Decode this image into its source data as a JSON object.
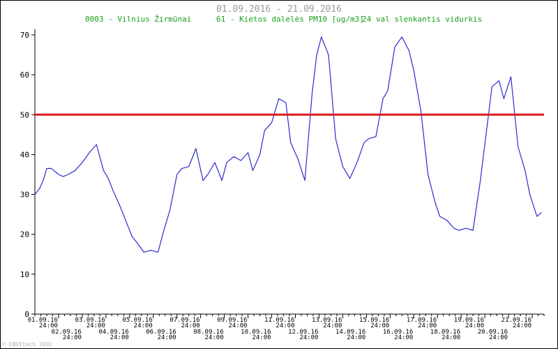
{
  "header": {
    "date_range": "01.09.2016 - 21.09.2016",
    "station": "0003 - Vilnius Žirmūnai",
    "pollutant": "61 - Kietos dalelės PM10 [ug/m3]",
    "averaging": "24 val slenkantis vidurkis"
  },
  "footer": {
    "credit": "© ENVItech 2002"
  },
  "colors": {
    "series": "#2b2bcc",
    "limit": "#e01a1a",
    "subtitle": "#1aa01a",
    "title": "#9a9a9a"
  },
  "chart_data": {
    "type": "line",
    "title": "01.09.2016 - 21.09.2016",
    "xlabel": "",
    "ylabel": "",
    "ylim": [
      0,
      70
    ],
    "yticks": [
      0,
      10,
      20,
      30,
      40,
      50,
      60,
      70
    ],
    "xlim_days": [
      0.0,
      21.5
    ],
    "xtick_labels": [
      {
        "day": 1,
        "date": "01.09.16",
        "time": "24:00"
      },
      {
        "day": 2,
        "date": "02.09.16",
        "time": "24:00"
      },
      {
        "day": 3,
        "date": "03.09.16",
        "time": "24:00"
      },
      {
        "day": 4,
        "date": "04.09.16",
        "time": "24:00"
      },
      {
        "day": 5,
        "date": "05.09.16",
        "time": "24:00"
      },
      {
        "day": 6,
        "date": "06.09.16",
        "time": "24:00"
      },
      {
        "day": 7,
        "date": "07.09.16",
        "time": "24:00"
      },
      {
        "day": 8,
        "date": "08.09.16",
        "time": "24:00"
      },
      {
        "day": 9,
        "date": "09.09.16",
        "time": "24:00"
      },
      {
        "day": 10,
        "date": "10.09.16",
        "time": "24:00"
      },
      {
        "day": 11,
        "date": "11.09.16",
        "time": "24:00"
      },
      {
        "day": 12,
        "date": "12.09.16",
        "time": "24:00"
      },
      {
        "day": 13,
        "date": "13.09.16",
        "time": "24:00"
      },
      {
        "day": 14,
        "date": "14.09.16",
        "time": "24:00"
      },
      {
        "day": 15,
        "date": "15.09.16",
        "time": "24:00"
      },
      {
        "day": 16,
        "date": "16.09.16",
        "time": "24:00"
      },
      {
        "day": 17,
        "date": "17.09.16",
        "time": "24:00"
      },
      {
        "day": 18,
        "date": "18.09.16",
        "time": "24:00"
      },
      {
        "day": 19,
        "date": "19.09.16",
        "time": "24:00"
      },
      {
        "day": 20,
        "date": "20.09.16",
        "time": "24:00"
      },
      {
        "day": 21,
        "date": "21.09.16",
        "time": "24:00"
      }
    ],
    "limit_line": {
      "y": 50
    },
    "series": [
      {
        "x": [
          0.0,
          0.2,
          0.35,
          0.5,
          0.7,
          1.0,
          1.2,
          1.4,
          1.7,
          2.0,
          2.3,
          2.6,
          2.9,
          3.1,
          3.3,
          3.6,
          3.9,
          4.1,
          4.3,
          4.6,
          4.9,
          5.2,
          5.4,
          5.7,
          6.0,
          6.2,
          6.5,
          6.8,
          7.1,
          7.3,
          7.6,
          7.9,
          8.1,
          8.4,
          8.7,
          9.0,
          9.2,
          9.5,
          9.7,
          10.0,
          10.3,
          10.6,
          10.8,
          11.1,
          11.4,
          11.7,
          11.9,
          12.1,
          12.4,
          12.7,
          13.0,
          13.3,
          13.6,
          13.9,
          14.1,
          14.4,
          14.7,
          14.9,
          15.2,
          15.5,
          15.8,
          16.0,
          16.3,
          16.6,
          16.9,
          17.1,
          17.4,
          17.7,
          17.9,
          18.2,
          18.5,
          18.8,
          19.0,
          19.3,
          19.6,
          19.8,
          20.1,
          20.4,
          20.7,
          20.9,
          21.2,
          21.4
        ],
        "y": [
          30.0,
          31.5,
          33.5,
          36.5,
          36.5,
          35.0,
          34.5,
          35.0,
          36.0,
          38.0,
          40.5,
          42.5,
          36.0,
          34.0,
          31.0,
          27.0,
          22.5,
          19.5,
          18.0,
          15.5,
          16.0,
          15.5,
          20.0,
          26.0,
          35.0,
          36.5,
          37.0,
          41.5,
          33.5,
          35.0,
          38.0,
          33.5,
          38.0,
          39.5,
          38.5,
          40.5,
          36.0,
          40.0,
          46.0,
          48.0,
          54.0,
          53.0,
          43.0,
          39.0,
          33.5,
          55.0,
          65.0,
          69.5,
          65.0,
          44.0,
          37.0,
          34.0,
          38.0,
          43.0,
          44.0,
          44.5,
          54.0,
          56.0,
          67.0,
          69.5,
          66.0,
          61.0,
          51.0,
          35.0,
          28.0,
          24.5,
          23.5,
          21.5,
          21.0,
          21.5,
          21.0,
          33.0,
          42.5,
          57.0,
          58.5,
          54.0,
          59.5,
          42.0,
          36.0,
          30.0,
          24.5,
          25.5
        ]
      }
    ]
  }
}
